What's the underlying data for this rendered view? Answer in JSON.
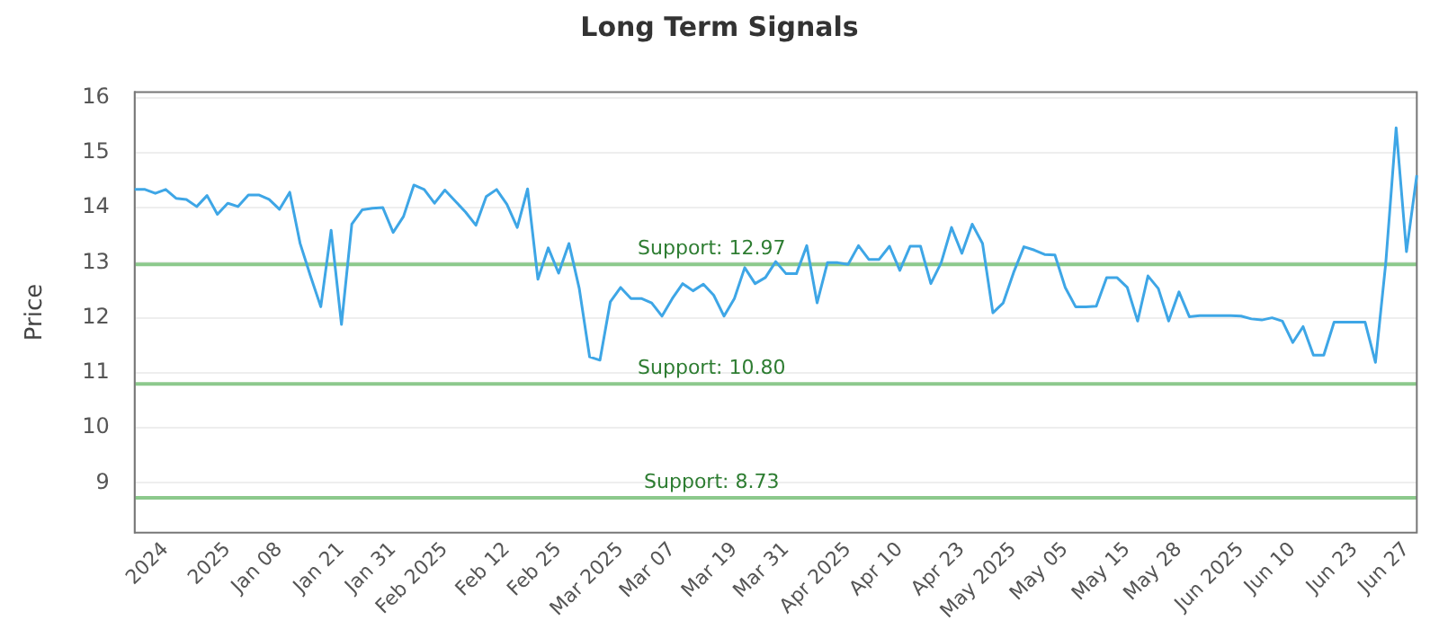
{
  "chart_data": {
    "type": "line",
    "title": "Long Term Signals",
    "ylabel": "Price",
    "categories": [
      null,
      null,
      null,
      "2024",
      null,
      null,
      null,
      null,
      null,
      "2025",
      null,
      null,
      null,
      null,
      "Jan 08",
      null,
      null,
      null,
      null,
      null,
      "Jan 21",
      null,
      null,
      null,
      null,
      "Jan 31",
      null,
      null,
      null,
      null,
      "Feb 2025",
      null,
      null,
      null,
      null,
      null,
      "Feb 12",
      null,
      null,
      null,
      null,
      "Feb 25",
      null,
      null,
      null,
      null,
      null,
      "Mar 2025",
      null,
      null,
      null,
      null,
      "Mar 07",
      null,
      null,
      null,
      null,
      null,
      "Mar 19",
      null,
      null,
      null,
      null,
      "Mar 31",
      null,
      null,
      null,
      null,
      null,
      "Apr 2025",
      null,
      null,
      null,
      null,
      "Apr 10",
      null,
      null,
      null,
      null,
      null,
      "Apr 23",
      null,
      null,
      null,
      null,
      "May 2025",
      null,
      null,
      null,
      null,
      "May 05",
      null,
      null,
      null,
      null,
      null,
      "May 15",
      null,
      null,
      null,
      null,
      "May 28",
      null,
      null,
      null,
      null,
      null,
      "Jun 2025",
      null,
      null,
      null,
      null,
      "Jun 10",
      null,
      null,
      null,
      null,
      null,
      "Jun 23",
      null,
      null,
      null,
      null,
      "Jun 27",
      null
    ],
    "series": [
      {
        "color": "#3ea6e6",
        "values": [
          14.33,
          14.33,
          14.26,
          14.33,
          14.17,
          14.15,
          14.02,
          14.22,
          13.88,
          14.08,
          14.02,
          14.23,
          14.23,
          14.15,
          13.97,
          14.28,
          13.35,
          12.76,
          12.2,
          13.59,
          11.88,
          13.7,
          13.96,
          13.99,
          14.0,
          13.55,
          13.84,
          14.41,
          14.33,
          14.08,
          14.32,
          14.12,
          13.92,
          13.68,
          14.2,
          14.33,
          14.06,
          13.64,
          14.34,
          12.7,
          13.27,
          12.81,
          13.35,
          12.53,
          11.29,
          11.23,
          12.29,
          12.55,
          12.35,
          12.35,
          12.27,
          12.03,
          12.35,
          12.62,
          12.49,
          12.61,
          12.41,
          12.03,
          12.35,
          12.91,
          12.62,
          12.73,
          13.02,
          12.8,
          12.8,
          13.31,
          12.27,
          13.0,
          13.0,
          12.97,
          13.31,
          13.06,
          13.06,
          13.3,
          12.86,
          13.3,
          13.3,
          12.62,
          13.0,
          13.64,
          13.17,
          13.7,
          13.35,
          12.09,
          12.27,
          12.82,
          13.29,
          13.23,
          13.15,
          13.14,
          12.55,
          12.2,
          12.2,
          12.21,
          12.73,
          12.73,
          12.55,
          11.94,
          12.76,
          12.53,
          11.94,
          12.47,
          12.02,
          12.04,
          12.04,
          12.04,
          12.04,
          12.03,
          11.98,
          11.96,
          12.0,
          11.94,
          11.55,
          11.84,
          11.32,
          11.32,
          11.92,
          11.92,
          11.92,
          11.92,
          11.19,
          13.0,
          15.45,
          13.2,
          14.59
        ]
      }
    ],
    "ylim": [
      8.1,
      16.1
    ],
    "yticks": [
      9,
      10,
      11,
      12,
      13,
      14,
      15,
      16
    ],
    "grid": "y",
    "legend": false,
    "marker": "none",
    "line_style": "solid",
    "ref_lines": [
      {
        "axis": "y",
        "value": 12.97,
        "label": "Support: 12.97",
        "color": "#8cc98c"
      },
      {
        "axis": "y",
        "value": 10.8,
        "label": "Support: 10.80",
        "color": "#8cc98c"
      },
      {
        "axis": "y",
        "value": 8.73,
        "label": "Support: 8.73",
        "color": "#8cc98c"
      }
    ]
  }
}
